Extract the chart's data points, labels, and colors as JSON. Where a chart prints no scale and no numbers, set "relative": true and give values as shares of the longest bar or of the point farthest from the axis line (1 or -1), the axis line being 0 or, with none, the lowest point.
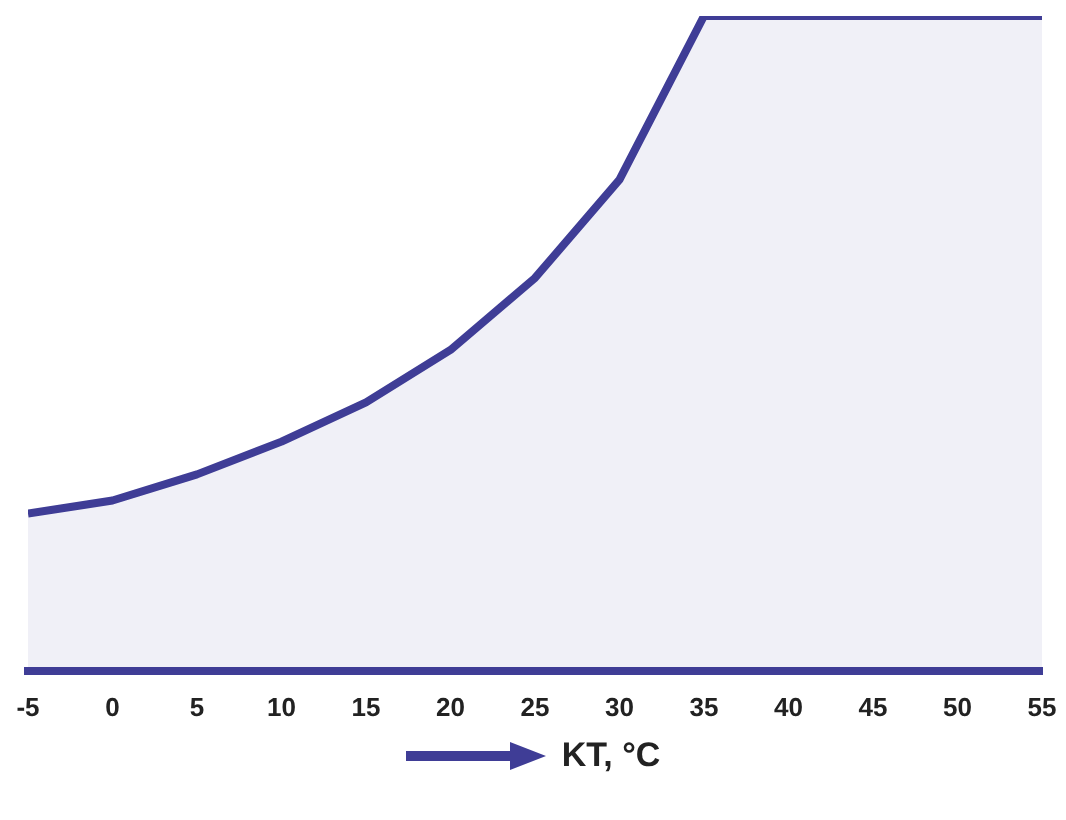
{
  "chart_data": {
    "type": "area",
    "relative": true,
    "xlabel": "KT, °C",
    "xlim": [
      -5,
      55
    ],
    "xticks": [
      -5,
      0,
      5,
      10,
      15,
      20,
      25,
      30,
      35,
      40,
      45,
      50,
      55
    ],
    "grid": false,
    "x": [
      -5,
      0,
      5,
      10,
      15,
      20,
      25,
      30,
      35,
      40,
      45,
      50,
      55
    ],
    "series": [
      {
        "color": "#3f3d96",
        "values": [
          0.24,
          0.26,
          0.3,
          0.35,
          0.41,
          0.49,
          0.6,
          0.75,
          1,
          1,
          1,
          1,
          1
        ]
      }
    ]
  }
}
